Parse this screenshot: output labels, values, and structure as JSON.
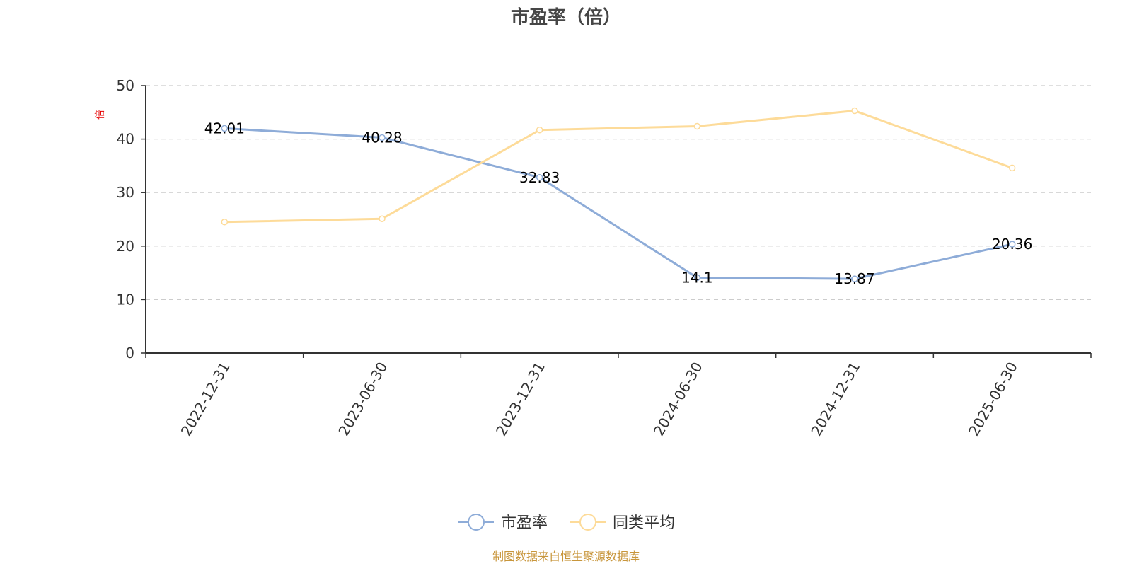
{
  "chart_data": {
    "type": "line",
    "title": "市盈率（倍）",
    "y_unit": "倍",
    "categories": [
      "2022-12-31",
      "2023-06-30",
      "2023-12-31",
      "2024-06-30",
      "2024-12-31",
      "2025-06-30"
    ],
    "ylim": [
      0,
      50
    ],
    "yticks": [
      0,
      10,
      20,
      30,
      40,
      50
    ],
    "grid": true,
    "legend_position": "bottom-center",
    "series": [
      {
        "name": "市盈率",
        "color": "#8eacd8",
        "values": [
          42.01,
          40.28,
          32.83,
          14.1,
          13.87,
          20.36
        ],
        "labels": [
          "42.01",
          "40.28",
          "32.83",
          "14.1",
          "13.87",
          "20.36"
        ]
      },
      {
        "name": "同类平均",
        "color": "#fddb99",
        "values": [
          24.5,
          25.1,
          41.7,
          42.4,
          45.3,
          34.6
        ]
      }
    ],
    "source": "制图数据来自恒生聚源数据库"
  }
}
